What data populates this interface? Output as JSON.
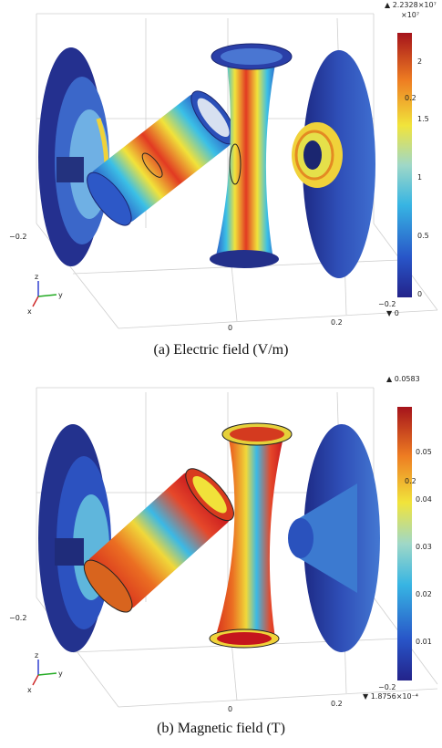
{
  "panels": [
    {
      "caption": "(a)  Electric field (V/m)",
      "colorbar": {
        "max_label": "▲ 2.2328×10⁷",
        "exponent": "×10⁷",
        "ticks": [
          "2",
          "1.5",
          "1",
          "0.5",
          "0"
        ],
        "min_label": "▼ 0"
      },
      "axis_ticks": {
        "left": "−0.2",
        "mid": "0",
        "right": "0.2",
        "corner": "−0.2",
        "inner": "0.2"
      },
      "triad": {
        "z": "z",
        "y": "y",
        "x": "x"
      }
    },
    {
      "caption": "(b)  Magnetic field (T)",
      "colorbar": {
        "max_label": "▲ 0.0583",
        "exponent": "",
        "ticks": [
          "0.05",
          "0.04",
          "0.03",
          "0.02",
          "0.01"
        ],
        "min_label": "▼ 1.8756×10⁻⁴"
      },
      "axis_ticks": {
        "left": "−0.2",
        "mid": "0",
        "right": "0.2",
        "corner": "−0.2",
        "inner": "0.2"
      },
      "triad": {
        "z": "z",
        "y": "y",
        "x": "x"
      }
    }
  ],
  "colors": {
    "low": "#27248f",
    "mid": "#33b9e0",
    "high": "#c5151d"
  }
}
